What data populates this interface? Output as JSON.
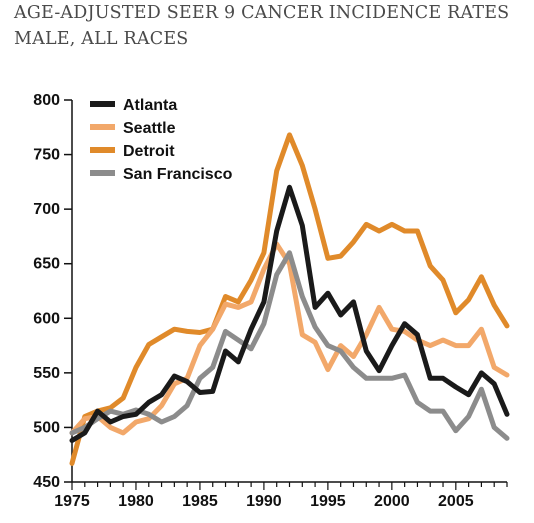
{
  "chart_data": {
    "type": "line",
    "title": [
      "AGE-ADJUSTED SEER 9 CANCER INCIDENCE RATES",
      "MALE, ALL RACES"
    ],
    "xlabel": "",
    "ylabel": "",
    "xlim": [
      1975,
      2009
    ],
    "ylim": [
      450,
      800
    ],
    "yticks": [
      450,
      500,
      550,
      600,
      650,
      700,
      750,
      800
    ],
    "xticks": [
      1975,
      1980,
      1985,
      1990,
      1995,
      2000,
      2005
    ],
    "grid": false,
    "legend_placement": "top-left",
    "x": [
      1975,
      1976,
      1977,
      1978,
      1979,
      1980,
      1981,
      1982,
      1983,
      1984,
      1985,
      1986,
      1987,
      1988,
      1989,
      1990,
      1991,
      1992,
      1993,
      1994,
      1995,
      1996,
      1997,
      1998,
      1999,
      2000,
      2001,
      2002,
      2003,
      2004,
      2005,
      2006,
      2007,
      2008,
      2009
    ],
    "series": [
      {
        "name": "Atlanta",
        "color": "#1a1a1a",
        "values": [
          488,
          495,
          515,
          505,
          510,
          512,
          523,
          530,
          547,
          542,
          532,
          533,
          570,
          560,
          590,
          615,
          680,
          720,
          685,
          610,
          623,
          603,
          615,
          570,
          552,
          575,
          595,
          585,
          545,
          545,
          537,
          530,
          550,
          540,
          512
        ]
      },
      {
        "name": "Seattle",
        "color": "#f2a86a",
        "values": [
          495,
          508,
          510,
          500,
          495,
          505,
          508,
          520,
          540,
          545,
          575,
          590,
          613,
          610,
          615,
          645,
          668,
          650,
          585,
          578,
          553,
          575,
          565,
          585,
          610,
          590,
          588,
          580,
          575,
          580,
          575,
          575,
          590,
          555,
          548
        ]
      },
      {
        "name": "Detroit",
        "color": "#e08a2a",
        "values": [
          467,
          510,
          515,
          518,
          527,
          555,
          576,
          583,
          590,
          588,
          587,
          590,
          620,
          615,
          635,
          660,
          735,
          768,
          740,
          700,
          655,
          657,
          670,
          686,
          680,
          686,
          680,
          680,
          648,
          635,
          605,
          617,
          638,
          612,
          593
        ]
      },
      {
        "name": "San Francisco",
        "color": "#8c8c8c",
        "values": [
          495,
          500,
          508,
          515,
          512,
          516,
          512,
          505,
          510,
          520,
          545,
          555,
          588,
          580,
          572,
          595,
          640,
          660,
          620,
          592,
          575,
          570,
          555,
          545,
          545,
          545,
          548,
          523,
          515,
          515,
          497,
          510,
          535,
          500,
          490
        ]
      }
    ]
  }
}
